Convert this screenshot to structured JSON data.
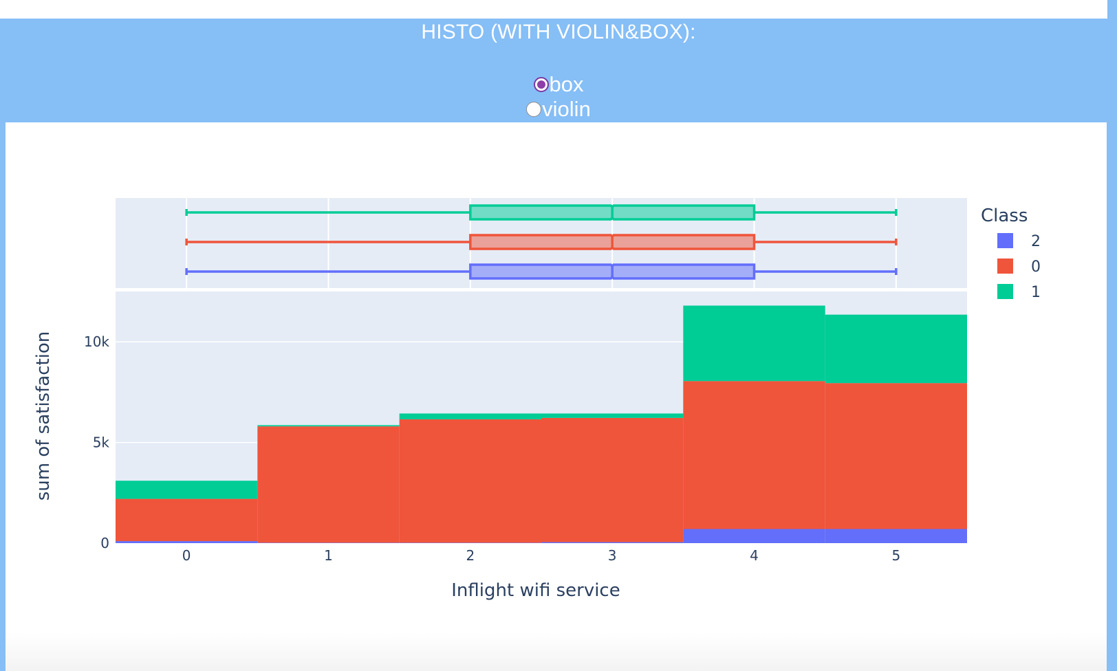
{
  "header": {
    "title": "HISTO (WITH VIOLIN&BOX):",
    "options": [
      {
        "label": "box",
        "checked": true
      },
      {
        "label": "violin",
        "checked": false
      }
    ]
  },
  "chart_data": {
    "type": "bar",
    "xlabel": "Inflight wifi service",
    "ylabel": "sum of satisfaction",
    "x_ticks": [
      0,
      1,
      2,
      3,
      4,
      5
    ],
    "y_ticks": [
      {
        "value": 0,
        "label": "0"
      },
      {
        "value": 5000,
        "label": "5k"
      },
      {
        "value": 10000,
        "label": "10k"
      }
    ],
    "x_range": [
      -0.5,
      5.5
    ],
    "ylim": [
      0,
      12500
    ],
    "grid": true,
    "legend": {
      "title": "Class",
      "placement": "right"
    },
    "categories": [
      0,
      1,
      2,
      3,
      4,
      5
    ],
    "series": [
      {
        "name": "2",
        "color": "#636efa",
        "values": [
          100,
          20,
          20,
          50,
          700,
          700
        ]
      },
      {
        "name": "0",
        "color": "#ef553b",
        "values": [
          2100,
          5780,
          6130,
          6170,
          7350,
          7250
        ]
      },
      {
        "name": "1",
        "color": "#00cc96",
        "values": [
          900,
          60,
          290,
          220,
          3750,
          3400
        ]
      }
    ],
    "box_plots": [
      {
        "name": "2",
        "min": 0,
        "q1": 2,
        "median": 3,
        "q3": 4,
        "max": 5
      },
      {
        "name": "0",
        "min": 0,
        "q1": 2,
        "median": 3,
        "q3": 4,
        "max": 5
      },
      {
        "name": "1",
        "min": 0,
        "q1": 2,
        "median": 3,
        "q3": 4,
        "max": 5
      }
    ]
  }
}
